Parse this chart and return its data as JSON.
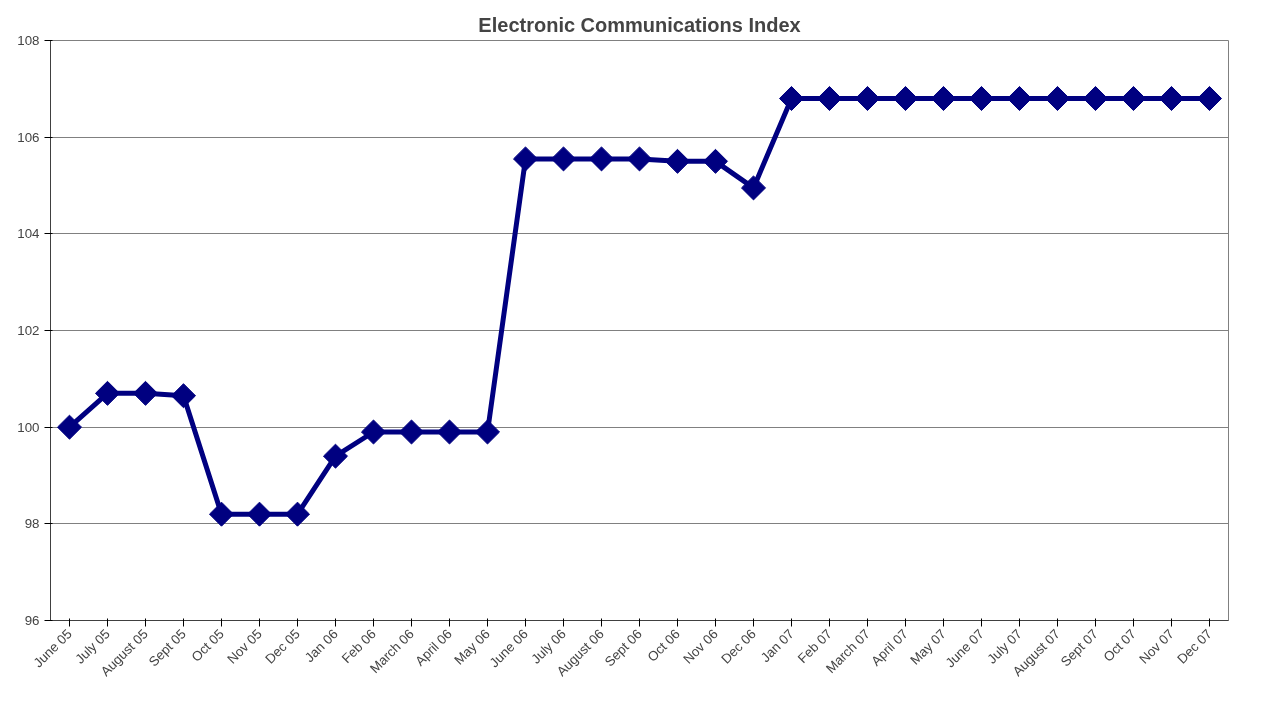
{
  "chart_data": {
    "type": "line",
    "title": "Electronic Communications Index",
    "categories": [
      "June 05",
      "July 05",
      "August 05",
      "Sept 05",
      "Oct 05",
      "Nov 05",
      "Dec 05",
      "Jan 06",
      "Feb 06",
      "March 06",
      "April 06",
      "May 06",
      "June 06",
      "July 06",
      "August 06",
      "Sept 06",
      "Oct 06",
      "Nov 06",
      "Dec 06",
      "Jan 07",
      "Feb 07",
      "March 07",
      "April 07",
      "May 07",
      "June 07",
      "July 07",
      "August 07",
      "Sept 07",
      "Oct 07",
      "Nov 07",
      "Dec 07"
    ],
    "series": [
      {
        "color": "#000080",
        "values": [
          100,
          100.7,
          100.7,
          100.65,
          98.2,
          98.2,
          98.2,
          99.4,
          99.9,
          99.9,
          99.9,
          99.9,
          105.55,
          105.55,
          105.55,
          105.55,
          105.5,
          105.5,
          104.95,
          106.8,
          106.8,
          106.8,
          106.8,
          106.8,
          106.8,
          106.8,
          106.8,
          106.8,
          106.8,
          106.8,
          106.8
        ]
      }
    ],
    "ylim": [
      96,
      108
    ],
    "yticks": [
      96,
      98,
      100,
      102,
      104,
      106,
      108
    ],
    "grid": "y",
    "marker": "diamond",
    "line_style": "solid"
  }
}
